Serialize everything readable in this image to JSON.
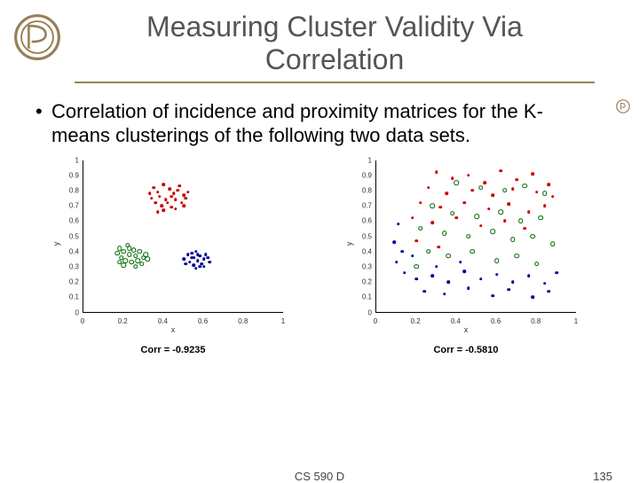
{
  "title": "Measuring Cluster Validity Via Correlation",
  "bullet": "Correlation of incidence and proximity matrices for the K-means clusterings of the following two data sets.",
  "footer": {
    "course": "CS 590 D",
    "page": "135"
  },
  "yticks": [
    "0",
    "0.1",
    "0.2",
    "0.3",
    "0.4",
    "0.5",
    "0.6",
    "0.7",
    "0.8",
    "0.9",
    "1"
  ],
  "xticks": [
    "0",
    "0.2",
    "0.4",
    "0.6",
    "0.8",
    "1"
  ],
  "xlabel": "x",
  "ylabel": "y",
  "logo_color": "#968056",
  "chart_left": {
    "caption": "Corr = -0.9235",
    "xlim": [
      0,
      1
    ],
    "ylim": [
      0,
      1
    ],
    "marker_size": 3.5,
    "series": [
      {
        "color": "#cc0000",
        "open": false,
        "points": [
          [
            0.35,
            0.82
          ],
          [
            0.37,
            0.79
          ],
          [
            0.4,
            0.84
          ],
          [
            0.43,
            0.81
          ],
          [
            0.45,
            0.78
          ],
          [
            0.38,
            0.76
          ],
          [
            0.41,
            0.74
          ],
          [
            0.44,
            0.76
          ],
          [
            0.47,
            0.8
          ],
          [
            0.5,
            0.77
          ],
          [
            0.36,
            0.72
          ],
          [
            0.39,
            0.7
          ],
          [
            0.42,
            0.72
          ],
          [
            0.46,
            0.74
          ],
          [
            0.49,
            0.72
          ],
          [
            0.34,
            0.75
          ],
          [
            0.48,
            0.83
          ],
          [
            0.51,
            0.75
          ],
          [
            0.4,
            0.67
          ],
          [
            0.44,
            0.69
          ],
          [
            0.37,
            0.66
          ],
          [
            0.46,
            0.68
          ],
          [
            0.5,
            0.7
          ],
          [
            0.33,
            0.78
          ],
          [
            0.52,
            0.79
          ]
        ]
      },
      {
        "color": "#006600",
        "open": true,
        "points": [
          [
            0.18,
            0.42
          ],
          [
            0.2,
            0.4
          ],
          [
            0.22,
            0.44
          ],
          [
            0.25,
            0.41
          ],
          [
            0.23,
            0.38
          ],
          [
            0.19,
            0.36
          ],
          [
            0.21,
            0.34
          ],
          [
            0.26,
            0.37
          ],
          [
            0.28,
            0.4
          ],
          [
            0.3,
            0.36
          ],
          [
            0.17,
            0.39
          ],
          [
            0.24,
            0.33
          ],
          [
            0.27,
            0.34
          ],
          [
            0.29,
            0.32
          ],
          [
            0.31,
            0.38
          ],
          [
            0.2,
            0.31
          ],
          [
            0.26,
            0.3
          ],
          [
            0.23,
            0.42
          ],
          [
            0.32,
            0.35
          ],
          [
            0.18,
            0.33
          ]
        ]
      },
      {
        "color": "#000099",
        "open": false,
        "points": [
          [
            0.52,
            0.38
          ],
          [
            0.54,
            0.36
          ],
          [
            0.56,
            0.4
          ],
          [
            0.58,
            0.37
          ],
          [
            0.6,
            0.35
          ],
          [
            0.53,
            0.33
          ],
          [
            0.55,
            0.31
          ],
          [
            0.57,
            0.34
          ],
          [
            0.59,
            0.32
          ],
          [
            0.61,
            0.38
          ],
          [
            0.5,
            0.35
          ],
          [
            0.62,
            0.36
          ],
          [
            0.56,
            0.29
          ],
          [
            0.58,
            0.3
          ],
          [
            0.54,
            0.39
          ],
          [
            0.6,
            0.3
          ],
          [
            0.51,
            0.32
          ],
          [
            0.63,
            0.33
          ],
          [
            0.55,
            0.36
          ],
          [
            0.57,
            0.38
          ]
        ]
      }
    ]
  },
  "chart_right": {
    "caption": "Corr = -0.5810",
    "xlim": [
      0,
      1
    ],
    "ylim": [
      0,
      1
    ],
    "marker_size": 3.5,
    "series": [
      {
        "color": "#cc0000",
        "open": false,
        "points": [
          [
            0.3,
            0.92
          ],
          [
            0.38,
            0.88
          ],
          [
            0.46,
            0.9
          ],
          [
            0.54,
            0.85
          ],
          [
            0.62,
            0.93
          ],
          [
            0.7,
            0.87
          ],
          [
            0.78,
            0.91
          ],
          [
            0.86,
            0.84
          ],
          [
            0.26,
            0.82
          ],
          [
            0.35,
            0.78
          ],
          [
            0.48,
            0.8
          ],
          [
            0.58,
            0.77
          ],
          [
            0.68,
            0.81
          ],
          [
            0.8,
            0.79
          ],
          [
            0.88,
            0.76
          ],
          [
            0.22,
            0.72
          ],
          [
            0.32,
            0.69
          ],
          [
            0.44,
            0.72
          ],
          [
            0.56,
            0.68
          ],
          [
            0.66,
            0.71
          ],
          [
            0.76,
            0.66
          ],
          [
            0.84,
            0.7
          ],
          [
            0.18,
            0.62
          ],
          [
            0.28,
            0.59
          ],
          [
            0.4,
            0.62
          ],
          [
            0.52,
            0.57
          ],
          [
            0.64,
            0.6
          ],
          [
            0.74,
            0.55
          ],
          [
            0.2,
            0.47
          ],
          [
            0.31,
            0.43
          ]
        ]
      },
      {
        "color": "#006600",
        "open": true,
        "points": [
          [
            0.4,
            0.85
          ],
          [
            0.52,
            0.82
          ],
          [
            0.64,
            0.8
          ],
          [
            0.74,
            0.83
          ],
          [
            0.84,
            0.78
          ],
          [
            0.28,
            0.7
          ],
          [
            0.38,
            0.65
          ],
          [
            0.5,
            0.63
          ],
          [
            0.62,
            0.66
          ],
          [
            0.72,
            0.6
          ],
          [
            0.82,
            0.62
          ],
          [
            0.22,
            0.55
          ],
          [
            0.34,
            0.52
          ],
          [
            0.46,
            0.5
          ],
          [
            0.58,
            0.53
          ],
          [
            0.68,
            0.48
          ],
          [
            0.78,
            0.5
          ],
          [
            0.88,
            0.45
          ],
          [
            0.26,
            0.4
          ],
          [
            0.36,
            0.37
          ],
          [
            0.48,
            0.4
          ],
          [
            0.6,
            0.34
          ],
          [
            0.7,
            0.37
          ],
          [
            0.8,
            0.32
          ],
          [
            0.2,
            0.3
          ]
        ]
      },
      {
        "color": "#000099",
        "open": false,
        "points": [
          [
            0.11,
            0.58
          ],
          [
            0.09,
            0.46
          ],
          [
            0.13,
            0.4
          ],
          [
            0.1,
            0.33
          ],
          [
            0.14,
            0.26
          ],
          [
            0.2,
            0.22
          ],
          [
            0.28,
            0.24
          ],
          [
            0.36,
            0.2
          ],
          [
            0.44,
            0.27
          ],
          [
            0.52,
            0.22
          ],
          [
            0.6,
            0.25
          ],
          [
            0.68,
            0.2
          ],
          [
            0.76,
            0.24
          ],
          [
            0.84,
            0.19
          ],
          [
            0.9,
            0.26
          ],
          [
            0.24,
            0.14
          ],
          [
            0.34,
            0.12
          ],
          [
            0.46,
            0.16
          ],
          [
            0.58,
            0.11
          ],
          [
            0.66,
            0.15
          ],
          [
            0.78,
            0.1
          ],
          [
            0.86,
            0.14
          ],
          [
            0.18,
            0.37
          ],
          [
            0.3,
            0.3
          ],
          [
            0.42,
            0.33
          ]
        ]
      }
    ]
  }
}
